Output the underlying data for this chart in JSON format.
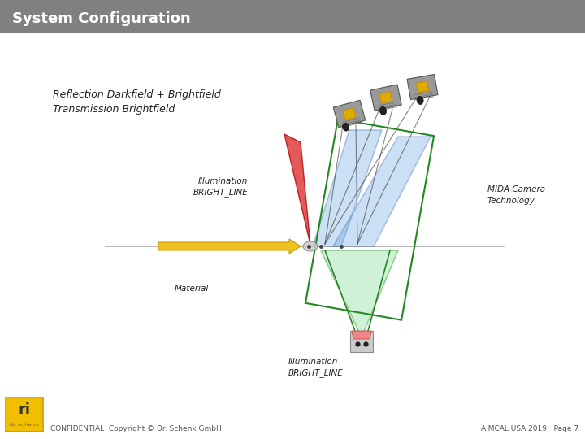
{
  "title": "System Configuration",
  "title_bg": "#808080",
  "title_color": "#ffffff",
  "title_fontsize": 13,
  "subtitle_line1": "Reflection Darkfield + Brightfield",
  "subtitle_line2": "Transmission Brightfield",
  "subtitle_fontsize": 9,
  "label_illumination_top": "Illumination\nBRIGHT_LINE",
  "label_illumination_bottom": "Illumination\nBRIGHT_LINE",
  "label_material": "Material",
  "label_camera": "MIDA Camera\nTechnology",
  "footer_left": "CONFIDENTIAL  Copyright © Dr. Schenk GmbH",
  "footer_right": "AIMCAL USA 2019   Page 7",
  "footer_fontsize": 6.5,
  "bg_color": "#ffffff",
  "arrow_color": "#f0c020",
  "line_color": "#aaaaaa",
  "green_edge": "#228822",
  "blue_edge": "#2255aa",
  "red_fill": "#dd2222"
}
